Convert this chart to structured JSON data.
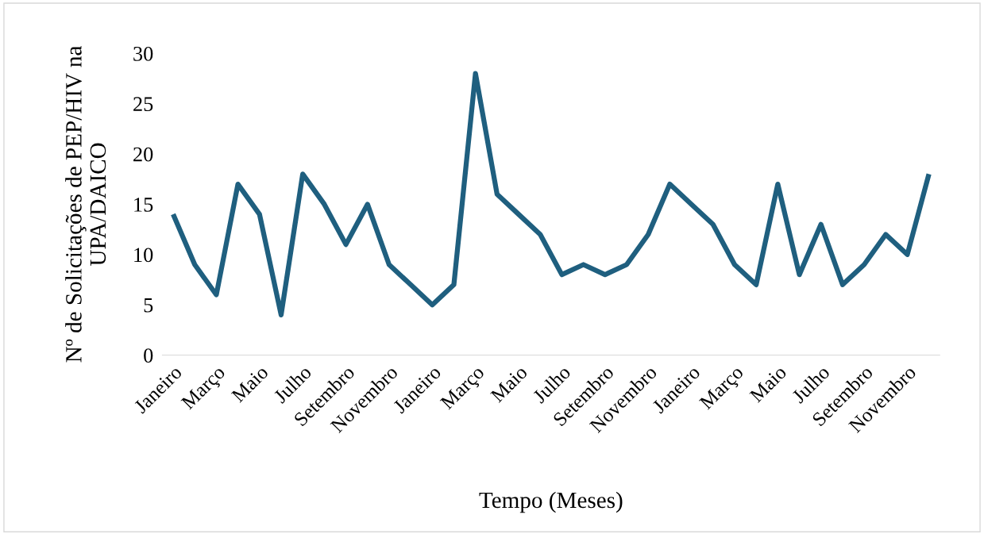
{
  "chart_data": {
    "type": "line",
    "xlabel": "Tempo (Meses)",
    "ylabel": "Nº de Solicitações de PEP/HIV na UPA/DAICO",
    "categories": [
      "Janeiro",
      null,
      "Março",
      null,
      "Maio",
      null,
      "Julho",
      null,
      "Setembro",
      null,
      "Novembro",
      null,
      "Janeiro",
      null,
      "Março",
      null,
      "Maio",
      null,
      "Julho",
      null,
      "Setembro",
      null,
      "Novembro",
      null,
      "Janeiro",
      null,
      "Março",
      null,
      "Maio",
      null,
      "Julho",
      null,
      "Setembro",
      null,
      "Novembro",
      null
    ],
    "series": [
      {
        "color": "#1f5f7f",
        "values": [
          14,
          9,
          6,
          17,
          14,
          4,
          18,
          15,
          11,
          15,
          9,
          7,
          5,
          7,
          28,
          16,
          14,
          12,
          8,
          9,
          8,
          9,
          12,
          17,
          15,
          13,
          9,
          7,
          17,
          8,
          13,
          7,
          9,
          12,
          10,
          18
        ]
      }
    ],
    "ylim": [
      0,
      30
    ],
    "yticks": [
      0,
      5,
      10,
      15,
      20,
      25,
      30
    ],
    "grid": false,
    "legend": false,
    "marker": "none",
    "line_style": "solid"
  }
}
